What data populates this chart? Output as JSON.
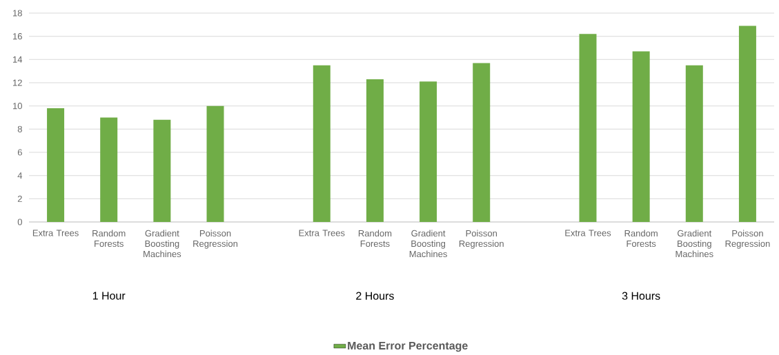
{
  "chart_data": {
    "type": "bar",
    "categories": [
      "Extra Trees",
      "Random Forests",
      "Gradient Boosting Machines",
      "Poisson Regression",
      null,
      "Extra Trees",
      "Random Forests",
      "Gradient Boosting Machines",
      "Poisson Regression",
      null,
      "Extra Trees",
      "Random Forests",
      "Gradient Boosting Machines",
      "Poisson Regression"
    ],
    "series": [
      {
        "name": "Mean Error Percentage",
        "color": "#70ad47",
        "values": [
          9.8,
          9.0,
          8.8,
          10.0,
          null,
          13.5,
          12.3,
          12.1,
          13.7,
          null,
          16.2,
          14.7,
          13.5,
          16.9
        ]
      }
    ],
    "annotations": [
      "1 Hour",
      "2 Hours",
      "3 Hours"
    ],
    "ylim": [
      0,
      18
    ],
    "yticks": [
      0,
      2,
      4,
      6,
      8,
      10,
      12,
      14,
      16,
      18
    ],
    "grid": "y",
    "legend": "bottom"
  }
}
